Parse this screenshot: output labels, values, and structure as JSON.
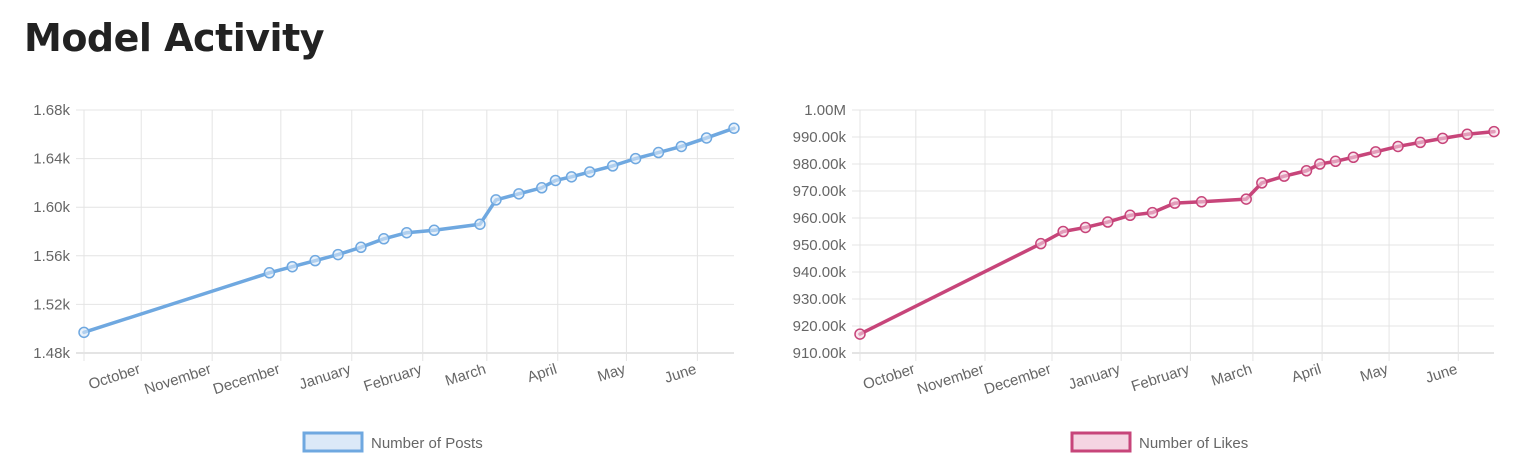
{
  "page": {
    "title": "Model Activity"
  },
  "chart_data": [
    {
      "type": "line",
      "legend": "Number of Posts",
      "color": "#6fa8e0",
      "fill": "#dbe9f8",
      "legend_position": "bottom",
      "grid": true,
      "yticks": [
        "1.48k",
        "1.52k",
        "1.56k",
        "1.60k",
        "1.64k",
        "1.68k"
      ],
      "ylim": [
        1480,
        1680
      ],
      "xticks": [
        "October",
        "November",
        "December",
        "January",
        "February",
        "March",
        "April",
        "May",
        "June"
      ],
      "xlim": [
        "2024-09-06",
        "2025-06-17"
      ],
      "series": [
        {
          "name": "Number of Posts",
          "x": [
            "2024-09-06",
            "2024-11-26",
            "2024-12-06",
            "2024-12-16",
            "2024-12-26",
            "2025-01-05",
            "2025-01-15",
            "2025-01-25",
            "2025-02-06",
            "2025-02-26",
            "2025-03-05",
            "2025-03-15",
            "2025-03-25",
            "2025-03-31",
            "2025-04-07",
            "2025-04-15",
            "2025-04-25",
            "2025-05-05",
            "2025-05-15",
            "2025-05-25",
            "2025-06-05",
            "2025-06-17"
          ],
          "y": [
            1497,
            1546,
            1551,
            1556,
            1561,
            1567,
            1574,
            1579,
            1581,
            1586,
            1606,
            1611,
            1616,
            1622,
            1625,
            1629,
            1634,
            1640,
            1645,
            1650,
            1657,
            1665
          ]
        }
      ]
    },
    {
      "type": "line",
      "legend": "Number of Likes",
      "color": "#c7457a",
      "fill": "#f5d5e2",
      "legend_position": "bottom",
      "grid": true,
      "yticks": [
        "910.00k",
        "920.00k",
        "930.00k",
        "940.00k",
        "950.00k",
        "960.00k",
        "970.00k",
        "980.00k",
        "990.00k",
        "1.00M"
      ],
      "ylim": [
        910000,
        1000000
      ],
      "xticks": [
        "October",
        "November",
        "December",
        "January",
        "February",
        "March",
        "April",
        "May",
        "June"
      ],
      "xlim": [
        "2024-09-06",
        "2025-06-17"
      ],
      "series": [
        {
          "name": "Number of Likes",
          "x": [
            "2024-09-06",
            "2024-11-26",
            "2024-12-06",
            "2024-12-16",
            "2024-12-26",
            "2025-01-05",
            "2025-01-15",
            "2025-01-25",
            "2025-02-06",
            "2025-02-26",
            "2025-03-05",
            "2025-03-15",
            "2025-03-25",
            "2025-03-31",
            "2025-04-07",
            "2025-04-15",
            "2025-04-25",
            "2025-05-05",
            "2025-05-15",
            "2025-05-25",
            "2025-06-05",
            "2025-06-17"
          ],
          "y": [
            917000,
            950500,
            955000,
            956500,
            958500,
            961000,
            962000,
            965500,
            966000,
            967000,
            973000,
            975500,
            977500,
            980000,
            981000,
            982500,
            984500,
            986500,
            988000,
            989500,
            991000,
            992000
          ]
        }
      ]
    }
  ]
}
